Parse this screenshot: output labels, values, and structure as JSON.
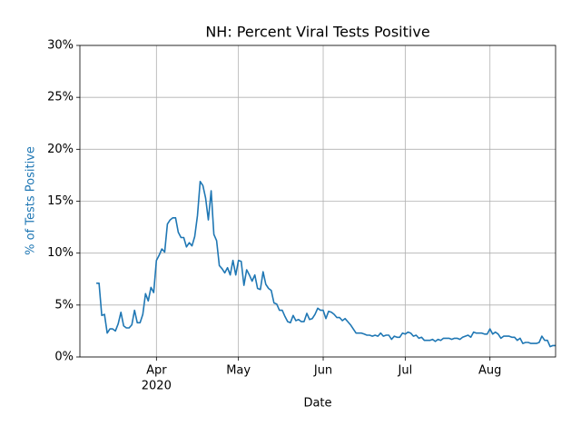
{
  "chart_data": {
    "type": "line",
    "title": "NH: Percent Viral Tests Positive",
    "xlabel": "Date",
    "ylabel": "% of Tests Positive",
    "ylabel_color": "#1f77b4",
    "xtick_year": "2020",
    "xlim": [
      -6,
      168
    ],
    "xticks": [
      {
        "value": 22,
        "label": "Apr"
      },
      {
        "value": 52,
        "label": "May"
      },
      {
        "value": 83,
        "label": "Jun"
      },
      {
        "value": 113,
        "label": "Jul"
      },
      {
        "value": 144,
        "label": "Aug"
      }
    ],
    "ylim": [
      0,
      30
    ],
    "yticks": [
      {
        "value": 0,
        "label": "0%"
      },
      {
        "value": 5,
        "label": "5%"
      },
      {
        "value": 10,
        "label": "10%"
      },
      {
        "value": 15,
        "label": "15%"
      },
      {
        "value": 20,
        "label": "20%"
      },
      {
        "value": 25,
        "label": "25%"
      },
      {
        "value": 30,
        "label": "30%"
      }
    ],
    "grid": true,
    "color": "#1f77b4",
    "values": [
      7.1,
      7.1,
      4.0,
      4.1,
      2.3,
      2.7,
      2.7,
      2.5,
      3.2,
      4.3,
      3.0,
      2.8,
      2.8,
      3.1,
      4.5,
      3.3,
      3.3,
      4.1,
      6.1,
      5.4,
      6.7,
      6.2,
      9.3,
      9.8,
      10.4,
      10.1,
      12.8,
      13.2,
      13.4,
      13.4,
      12.0,
      11.5,
      11.5,
      10.6,
      11.0,
      10.7,
      11.6,
      13.6,
      16.9,
      16.5,
      15.3,
      13.2,
      16.0,
      11.8,
      11.2,
      8.8,
      8.5,
      8.1,
      8.6,
      7.9,
      9.3,
      7.9,
      9.3,
      9.2,
      6.9,
      8.4,
      7.9,
      7.3,
      7.9,
      6.6,
      6.5,
      8.2,
      7.0,
      6.6,
      6.4,
      5.2,
      5.1,
      4.5,
      4.5,
      3.9,
      3.4,
      3.3,
      4.0,
      3.5,
      3.6,
      3.4,
      3.4,
      4.2,
      3.6,
      3.7,
      4.1,
      4.7,
      4.5,
      4.5,
      3.7,
      4.4,
      4.3,
      4.1,
      3.8,
      3.8,
      3.5,
      3.7,
      3.4,
      3.1,
      2.7,
      2.3,
      2.3,
      2.3,
      2.2,
      2.1,
      2.1,
      2.0,
      2.1,
      2.0,
      2.3,
      2.0,
      2.1,
      2.1,
      1.7,
      2.0,
      1.9,
      1.9,
      2.3,
      2.2,
      2.4,
      2.3,
      2.0,
      2.1,
      1.8,
      1.9,
      1.6,
      1.6,
      1.6,
      1.7,
      1.5,
      1.7,
      1.6,
      1.8,
      1.8,
      1.8,
      1.7,
      1.8,
      1.8,
      1.7,
      1.9,
      2.0,
      2.1,
      1.9,
      2.4,
      2.3,
      2.3,
      2.3,
      2.2,
      2.2,
      2.7,
      2.2,
      2.4,
      2.2,
      1.8,
      2.0,
      2.0,
      2.0,
      1.9,
      1.9,
      1.6,
      1.8,
      1.3,
      1.4,
      1.4,
      1.3,
      1.3,
      1.3,
      1.4,
      2.0,
      1.6,
      1.6,
      1.0,
      1.1,
      1.1
    ]
  }
}
